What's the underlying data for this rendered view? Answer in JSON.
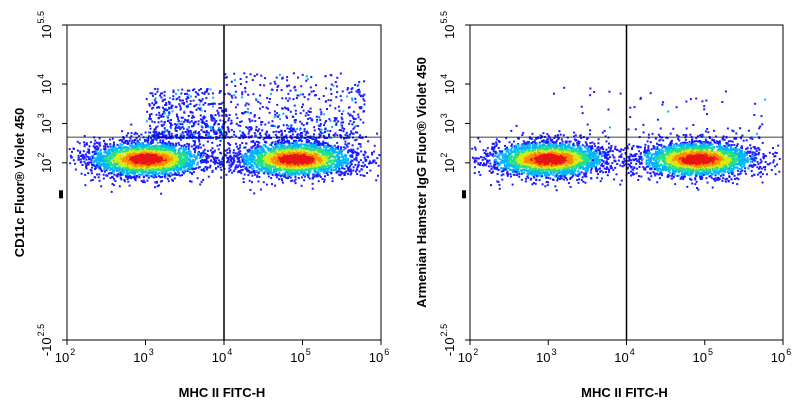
{
  "chart_data": [
    {
      "type": "scatter",
      "title": "",
      "xlabel": "MHC II FITC-H",
      "ylabel": "CD11c  Fluor® Violet 450",
      "x_scale": "log",
      "y_scale": "log",
      "xlim": [
        100,
        1000000
      ],
      "ylim_exponents": [
        -2.5,
        5.5
      ],
      "x_ticks": [
        {
          "base": "10",
          "exp": "2",
          "value": 100
        },
        {
          "base": "10",
          "exp": "3",
          "value": 1000
        },
        {
          "base": "10",
          "exp": "4",
          "value": 10000
        },
        {
          "base": "10",
          "exp": "5",
          "value": 100000
        },
        {
          "base": "10",
          "exp": "6",
          "value": 1000000
        }
      ],
      "y_ticks": [
        {
          "base": "-10",
          "exp": "2.5",
          "value_exp": -2.5
        },
        {
          "base": "10",
          "exp": "2",
          "value_exp": 2
        },
        {
          "base": "10",
          "exp": "3",
          "value_exp": 3
        },
        {
          "base": "10",
          "exp": "4",
          "value_exp": 4
        },
        {
          "base": "10",
          "exp": "5.5",
          "value_exp": 5.5
        }
      ],
      "gates": {
        "x_vertical": 10000,
        "y_horizontal": 450
      },
      "populations": [
        {
          "x_center": 1000,
          "y_center": 130,
          "density": "high"
        },
        {
          "x_center": 80000,
          "y_center": 130,
          "density": "high"
        },
        {
          "x_range": [
            1000,
            10000
          ],
          "y_range": [
            450,
            8000
          ],
          "density": "scattered"
        },
        {
          "x_range": [
            10000,
            600000
          ],
          "y_range": [
            450,
            20000
          ],
          "density": "scattered"
        }
      ],
      "colormap": [
        "#1a1aff",
        "#00b4ff",
        "#22e08a",
        "#d8ea10",
        "#ff8c00",
        "#e81414"
      ]
    },
    {
      "type": "scatter",
      "title": "",
      "xlabel": "MHC II FITC-H",
      "ylabel": "Armenian Hamster IgG  Fluor® Violet 450",
      "x_scale": "log",
      "y_scale": "log",
      "xlim": [
        100,
        1000000
      ],
      "ylim_exponents": [
        -2.5,
        5.5
      ],
      "x_ticks": [
        {
          "base": "10",
          "exp": "2",
          "value": 100
        },
        {
          "base": "10",
          "exp": "3",
          "value": 1000
        },
        {
          "base": "10",
          "exp": "4",
          "value": 10000
        },
        {
          "base": "10",
          "exp": "5",
          "value": 100000
        },
        {
          "base": "10",
          "exp": "6",
          "value": 1000000
        }
      ],
      "y_ticks": [
        {
          "base": "-10",
          "exp": "2.5",
          "value_exp": -2.5
        },
        {
          "base": "10",
          "exp": "2",
          "value_exp": 2
        },
        {
          "base": "10",
          "exp": "3",
          "value_exp": 3
        },
        {
          "base": "10",
          "exp": "4",
          "value_exp": 4
        },
        {
          "base": "10",
          "exp": "5.5",
          "value_exp": 5.5
        }
      ],
      "gates": {
        "x_vertical": 10000,
        "y_horizontal": 450
      },
      "populations": [
        {
          "x_center": 1000,
          "y_center": 130,
          "density": "high"
        },
        {
          "x_center": 80000,
          "y_center": 130,
          "density": "high"
        },
        {
          "x_range": [
            1000,
            600000
          ],
          "y_range": [
            450,
            10000
          ],
          "density": "sparse"
        }
      ],
      "colormap": [
        "#1a1aff",
        "#00b4ff",
        "#22e08a",
        "#d8ea10",
        "#ff8c00",
        "#e81414"
      ]
    }
  ]
}
